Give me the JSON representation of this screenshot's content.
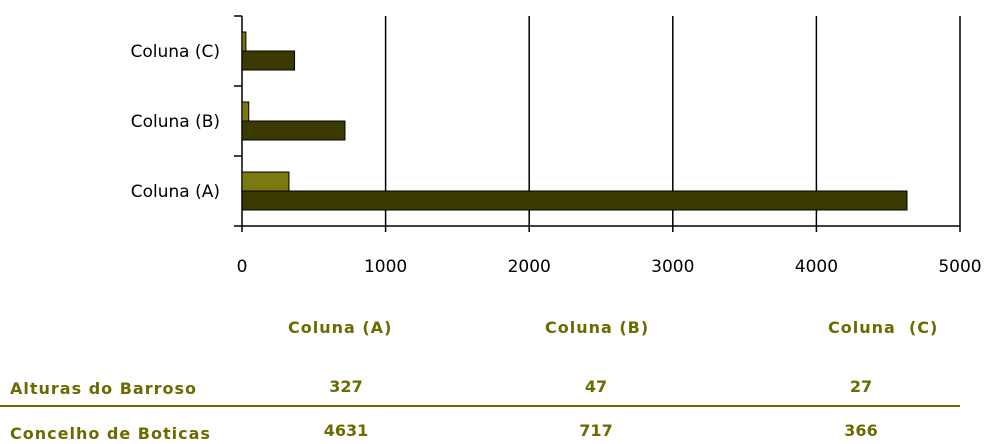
{
  "chart_data": {
    "type": "bar",
    "orientation": "horizontal",
    "categories": [
      "Coluna (A)",
      "Coluna (B)",
      "Coluna  (C)"
    ],
    "series": [
      {
        "name": "Alturas do Barroso",
        "values": [
          327,
          47,
          27
        ],
        "color": "#7a7a10"
      },
      {
        "name": "Concelho de Boticas",
        "values": [
          4631,
          717,
          366
        ],
        "color": "#3a3a00"
      }
    ],
    "xlim": [
      0,
      5000
    ],
    "xticks": [
      "0",
      "1000",
      "2000",
      "3000",
      "4000",
      "5000"
    ],
    "grid": "vertical"
  },
  "table": {
    "headers": [
      "Coluna (A)",
      "Coluna (B)",
      "Coluna  (C)"
    ],
    "rows": [
      {
        "label": "Alturas do Barroso",
        "values": [
          "327",
          "47",
          "27"
        ]
      },
      {
        "label": "Concelho de Boticas",
        "values": [
          "4631",
          "717",
          "366"
        ]
      }
    ]
  }
}
